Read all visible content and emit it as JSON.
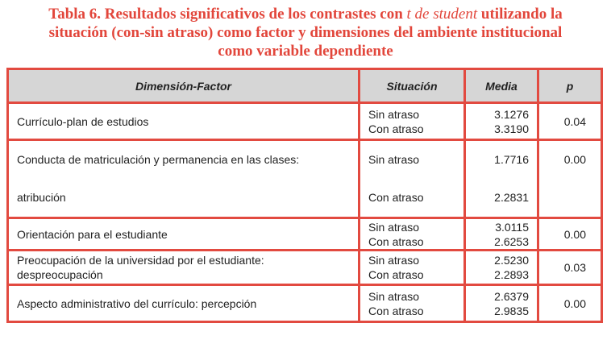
{
  "title": {
    "line1_a": "Tabla 6. Resultados significativos de los contrastes con ",
    "line1_italic": "t de student",
    "line1_b": " utilizando la",
    "line2": "situación (con-sin atraso) como factor y dimensiones del ambiente institucional",
    "line3": "como variable dependiente"
  },
  "table": {
    "headers": [
      "Dimensión-Factor",
      "Situación",
      "Media",
      "p"
    ],
    "rows": [
      {
        "factor": [
          "Currículo-plan de estudios"
        ],
        "situacion": [
          "Sin atraso",
          "Con atraso"
        ],
        "media": [
          "3.1276",
          "3.3190"
        ],
        "p": "0.04"
      },
      {
        "factor": [
          "Conducta de matriculación y permanencia en las clases:",
          "atribución"
        ],
        "situacion": [
          "Sin atraso",
          "Con atraso"
        ],
        "media": [
          "1.7716",
          "2.2831"
        ],
        "p": "0.00"
      },
      {
        "factor": [
          "Orientación para el estudiante"
        ],
        "situacion": [
          "Sin atraso",
          "Con atraso"
        ],
        "media": [
          "3.0115",
          "2.6253"
        ],
        "p": "0.00"
      },
      {
        "factor": [
          "Preocupación de la universidad por el estudiante:",
          "despreocupación"
        ],
        "situacion": [
          "Sin atraso",
          "Con atraso"
        ],
        "media": [
          "2.5230",
          "2.2893"
        ],
        "p": "0.03"
      },
      {
        "factor": [
          "Aspecto administrativo del currículo: percepción"
        ],
        "situacion": [
          "Sin atraso",
          "Con atraso"
        ],
        "media": [
          "2.6379",
          "2.9835"
        ],
        "p": "0.00"
      }
    ]
  }
}
